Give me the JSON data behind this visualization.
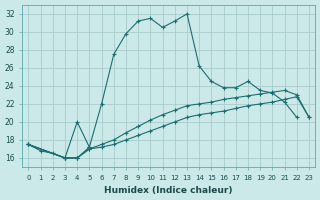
{
  "xlabel": "Humidex (Indice chaleur)",
  "ylabel": "",
  "background_color": "#cce9e9",
  "grid_color": "#b0d4d4",
  "line_color": "#1a6e6e",
  "xlim": [
    -0.5,
    23.5
  ],
  "ylim": [
    15.0,
    33.0
  ],
  "yticks": [
    16,
    18,
    20,
    22,
    24,
    26,
    28,
    30,
    32
  ],
  "xticks": [
    0,
    1,
    2,
    3,
    4,
    5,
    6,
    7,
    8,
    9,
    10,
    11,
    12,
    13,
    14,
    15,
    16,
    17,
    18,
    19,
    20,
    21,
    22,
    23
  ],
  "xtick_labels": [
    "0",
    "1",
    "2",
    "3",
    "4",
    "5",
    "6",
    "7",
    "8",
    "9",
    "10",
    "11",
    "12",
    "13",
    "14",
    "15",
    "16",
    "17",
    "18",
    "19",
    "20",
    "21",
    "22",
    "23"
  ],
  "series1_x": [
    0,
    1,
    2,
    3,
    4,
    5,
    6,
    7,
    8,
    9,
    10,
    11,
    12,
    13,
    14,
    15,
    16,
    17,
    18,
    19,
    20,
    21,
    22
  ],
  "series1_y": [
    17.5,
    16.8,
    16.5,
    16.0,
    20.0,
    17.2,
    22.0,
    27.5,
    29.8,
    31.2,
    31.5,
    30.5,
    31.2,
    32.0,
    26.2,
    24.5,
    23.8,
    23.8,
    24.5,
    23.5,
    23.2,
    22.2,
    20.5
  ],
  "series2_x": [
    0,
    3,
    4,
    5
  ],
  "series2_y": [
    17.5,
    16.0,
    16.0,
    17.2
  ],
  "series3_x": [
    0,
    3,
    4,
    5,
    6,
    7,
    8,
    9,
    10,
    11,
    12,
    13,
    14,
    15,
    16,
    17,
    18,
    19,
    20,
    21,
    22,
    23
  ],
  "series3_y": [
    17.5,
    16.0,
    16.0,
    17.0,
    17.5,
    18.0,
    18.8,
    19.5,
    20.2,
    20.8,
    21.3,
    21.8,
    22.0,
    22.2,
    22.5,
    22.7,
    22.9,
    23.1,
    23.3,
    23.5,
    23.0,
    20.5
  ],
  "series4_x": [
    0,
    3,
    4,
    5,
    6,
    7,
    8,
    9,
    10,
    11,
    12,
    13,
    14,
    15,
    16,
    17,
    18,
    19,
    20,
    21,
    22,
    23
  ],
  "series4_y": [
    17.5,
    16.0,
    16.0,
    17.0,
    17.2,
    17.5,
    18.0,
    18.5,
    19.0,
    19.5,
    20.0,
    20.5,
    20.8,
    21.0,
    21.2,
    21.5,
    21.8,
    22.0,
    22.2,
    22.5,
    22.8,
    20.5
  ]
}
